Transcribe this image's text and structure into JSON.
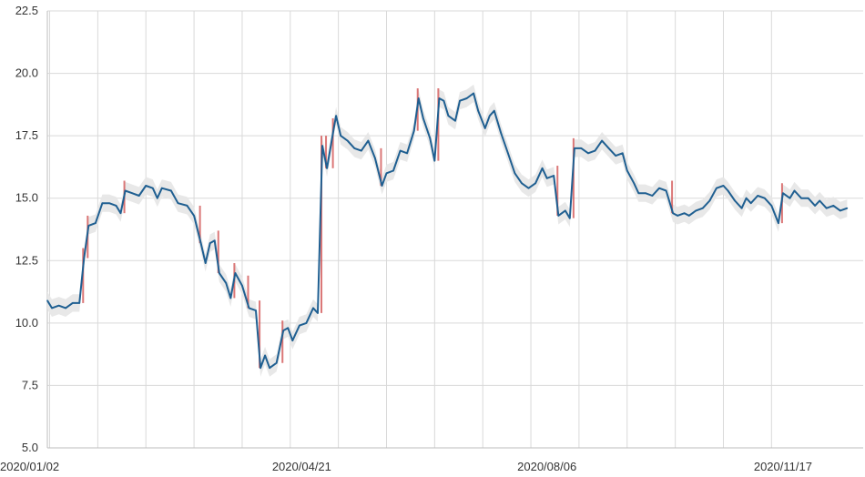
{
  "chart_data": {
    "type": "line",
    "title": "",
    "xlabel": "",
    "ylabel": "",
    "grid": true,
    "x_range": [
      "2020-01-01",
      "2020-12-22"
    ],
    "ylim": [
      5.0,
      22.5
    ],
    "y_ticks": [
      "5.0",
      "7.5",
      "10.0",
      "12.5",
      "15.0",
      "17.5",
      "20.0",
      "22.5"
    ],
    "x_ticks": [
      {
        "date": "2020-01-02",
        "label": "2020/01/02"
      },
      {
        "date": "2020-04-21",
        "label": "2020/04/21"
      },
      {
        "date": "2020-08-06",
        "label": "2020/08/06"
      },
      {
        "date": "2020-11-17",
        "label": "2020/11/17"
      }
    ],
    "x_gridlines": [
      "2020-01-02",
      "2020-01-23",
      "2020-02-13",
      "2020-03-05",
      "2020-03-26",
      "2020-04-16",
      "2020-05-07",
      "2020-05-28",
      "2020-06-18",
      "2020-07-09",
      "2020-07-30",
      "2020-08-20",
      "2020-09-10",
      "2020-10-01",
      "2020-10-22",
      "2020-11-12"
    ],
    "colors": {
      "line": "#1f5f91",
      "band": "#e6e6e6",
      "candle": "#d04a4a"
    },
    "series": [
      {
        "values": [
          [
            "2020-01-01",
            10.9
          ],
          [
            "2020-01-03",
            10.6
          ],
          [
            "2020-01-06",
            10.7
          ],
          [
            "2020-01-09",
            10.6
          ],
          [
            "2020-01-12",
            10.8
          ],
          [
            "2020-01-15",
            10.8
          ],
          [
            "2020-01-17",
            12.6
          ],
          [
            "2020-01-19",
            13.9
          ],
          [
            "2020-01-22",
            14.0
          ],
          [
            "2020-01-25",
            14.8
          ],
          [
            "2020-01-28",
            14.8
          ],
          [
            "2020-01-31",
            14.7
          ],
          [
            "2020-02-02",
            14.4
          ],
          [
            "2020-02-04",
            15.3
          ],
          [
            "2020-02-07",
            15.2
          ],
          [
            "2020-02-10",
            15.1
          ],
          [
            "2020-02-13",
            15.5
          ],
          [
            "2020-02-16",
            15.4
          ],
          [
            "2020-02-18",
            15.0
          ],
          [
            "2020-02-20",
            15.4
          ],
          [
            "2020-02-24",
            15.3
          ],
          [
            "2020-02-27",
            14.8
          ],
          [
            "2020-03-02",
            14.7
          ],
          [
            "2020-03-05",
            14.3
          ],
          [
            "2020-03-08",
            13.2
          ],
          [
            "2020-03-10",
            12.4
          ],
          [
            "2020-03-12",
            13.2
          ],
          [
            "2020-03-14",
            13.3
          ],
          [
            "2020-03-16",
            12.0
          ],
          [
            "2020-03-19",
            11.6
          ],
          [
            "2020-03-21",
            11.0
          ],
          [
            "2020-03-23",
            12.0
          ],
          [
            "2020-03-26",
            11.5
          ],
          [
            "2020-03-29",
            10.6
          ],
          [
            "2020-04-01",
            10.5
          ],
          [
            "2020-04-03",
            8.2
          ],
          [
            "2020-04-05",
            8.7
          ],
          [
            "2020-04-07",
            8.2
          ],
          [
            "2020-04-10",
            8.4
          ],
          [
            "2020-04-13",
            9.7
          ],
          [
            "2020-04-15",
            9.8
          ],
          [
            "2020-04-17",
            9.3
          ],
          [
            "2020-04-20",
            9.9
          ],
          [
            "2020-04-23",
            10.0
          ],
          [
            "2020-04-26",
            10.6
          ],
          [
            "2020-04-28",
            10.4
          ],
          [
            "2020-04-30",
            17.1
          ],
          [
            "2020-05-02",
            16.2
          ],
          [
            "2020-05-05",
            17.8
          ],
          [
            "2020-05-06",
            18.3
          ],
          [
            "2020-05-08",
            17.5
          ],
          [
            "2020-05-11",
            17.3
          ],
          [
            "2020-05-14",
            17.0
          ],
          [
            "2020-05-17",
            16.9
          ],
          [
            "2020-05-20",
            17.3
          ],
          [
            "2020-05-23",
            16.6
          ],
          [
            "2020-05-26",
            15.5
          ],
          [
            "2020-05-28",
            16.0
          ],
          [
            "2020-05-31",
            16.1
          ],
          [
            "2020-06-03",
            16.9
          ],
          [
            "2020-06-06",
            16.8
          ],
          [
            "2020-06-09",
            17.7
          ],
          [
            "2020-06-11",
            19.0
          ],
          [
            "2020-06-13",
            18.2
          ],
          [
            "2020-06-16",
            17.4
          ],
          [
            "2020-06-18",
            16.5
          ],
          [
            "2020-06-20",
            19.0
          ],
          [
            "2020-06-22",
            18.9
          ],
          [
            "2020-06-24",
            18.3
          ],
          [
            "2020-06-27",
            18.1
          ],
          [
            "2020-06-29",
            18.9
          ],
          [
            "2020-07-02",
            19.0
          ],
          [
            "2020-07-05",
            19.2
          ],
          [
            "2020-07-07",
            18.5
          ],
          [
            "2020-07-10",
            17.8
          ],
          [
            "2020-07-12",
            18.3
          ],
          [
            "2020-07-14",
            18.5
          ],
          [
            "2020-07-17",
            17.6
          ],
          [
            "2020-07-20",
            16.8
          ],
          [
            "2020-07-23",
            16.0
          ],
          [
            "2020-07-26",
            15.6
          ],
          [
            "2020-07-29",
            15.4
          ],
          [
            "2020-08-01",
            15.6
          ],
          [
            "2020-08-04",
            16.2
          ],
          [
            "2020-08-06",
            15.8
          ],
          [
            "2020-08-09",
            15.9
          ],
          [
            "2020-08-11",
            14.3
          ],
          [
            "2020-08-14",
            14.5
          ],
          [
            "2020-08-16",
            14.2
          ],
          [
            "2020-08-18",
            17.0
          ],
          [
            "2020-08-21",
            17.0
          ],
          [
            "2020-08-24",
            16.8
          ],
          [
            "2020-08-27",
            16.9
          ],
          [
            "2020-08-30",
            17.3
          ],
          [
            "2020-09-02",
            17.0
          ],
          [
            "2020-09-05",
            16.7
          ],
          [
            "2020-09-08",
            16.8
          ],
          [
            "2020-09-10",
            16.1
          ],
          [
            "2020-09-13",
            15.6
          ],
          [
            "2020-09-15",
            15.2
          ],
          [
            "2020-09-18",
            15.2
          ],
          [
            "2020-09-21",
            15.1
          ],
          [
            "2020-09-24",
            15.4
          ],
          [
            "2020-09-27",
            15.3
          ],
          [
            "2020-09-30",
            14.4
          ],
          [
            "2020-10-02",
            14.3
          ],
          [
            "2020-10-05",
            14.4
          ],
          [
            "2020-10-07",
            14.3
          ],
          [
            "2020-10-10",
            14.5
          ],
          [
            "2020-10-13",
            14.6
          ],
          [
            "2020-10-16",
            14.9
          ],
          [
            "2020-10-19",
            15.4
          ],
          [
            "2020-10-22",
            15.5
          ],
          [
            "2020-10-24",
            15.3
          ],
          [
            "2020-10-27",
            14.9
          ],
          [
            "2020-10-30",
            14.6
          ],
          [
            "2020-11-01",
            15.0
          ],
          [
            "2020-11-03",
            14.8
          ],
          [
            "2020-11-06",
            15.1
          ],
          [
            "2020-11-09",
            15.0
          ],
          [
            "2020-11-12",
            14.7
          ],
          [
            "2020-11-15",
            14.0
          ],
          [
            "2020-11-17",
            15.2
          ],
          [
            "2020-11-20",
            15.0
          ],
          [
            "2020-11-22",
            15.3
          ],
          [
            "2020-11-25",
            15.0
          ],
          [
            "2020-11-28",
            15.0
          ],
          [
            "2020-12-01",
            14.7
          ],
          [
            "2020-12-03",
            14.9
          ],
          [
            "2020-12-06",
            14.6
          ],
          [
            "2020-12-09",
            14.7
          ],
          [
            "2020-12-12",
            14.5
          ],
          [
            "2020-12-15",
            14.6
          ]
        ]
      }
    ]
  }
}
